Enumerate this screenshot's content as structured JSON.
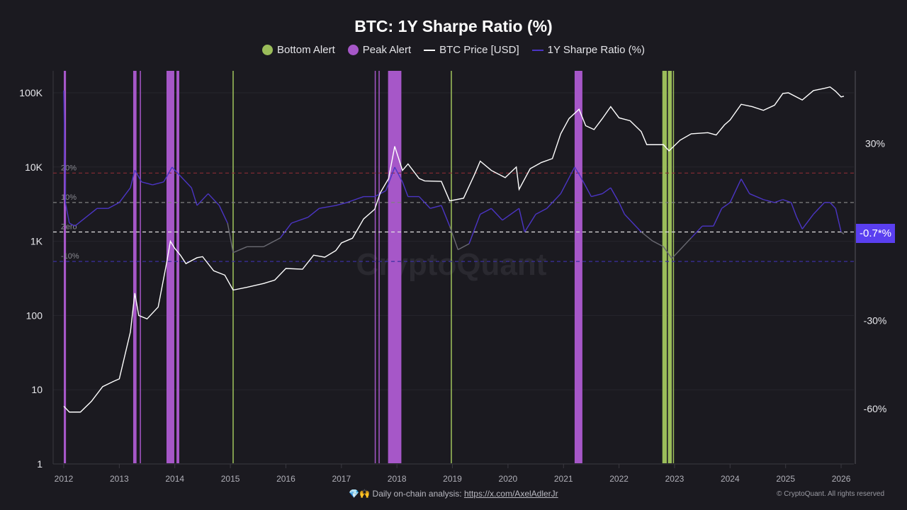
{
  "chart_data": {
    "type": "line",
    "title": "BTC: 1Y Sharpe Ratio (%)",
    "legend": [
      {
        "name": "Bottom Alert",
        "color": "#9bbd5a",
        "kind": "dot"
      },
      {
        "name": "Peak Alert",
        "color": "#a657c8",
        "kind": "dot"
      },
      {
        "name": "BTC Price [USD]",
        "color": "#ffffff",
        "kind": "line"
      },
      {
        "name": "1Y Sharpe Ratio (%)",
        "color": "#4b35c4",
        "kind": "line"
      }
    ],
    "legend_position": "top-center",
    "x_ticks": [
      "2012",
      "2013",
      "2014",
      "2015",
      "2016",
      "2017",
      "2018",
      "2019",
      "2020",
      "2021",
      "2022",
      "2023",
      "2024",
      "2025",
      "2026"
    ],
    "xlim": [
      2011.8,
      2026.22
    ],
    "left_axis": {
      "scale": "log",
      "ticks": [
        "1",
        "10",
        "100",
        "1K",
        "10K",
        "100K"
      ],
      "ylim": [
        1,
        300000
      ]
    },
    "right_axis": {
      "ticks": [
        "30%",
        "-30%",
        "-60%"
      ],
      "tick_values": [
        30,
        -30,
        -60
      ]
    },
    "thresholds": [
      {
        "label": "20%",
        "value": 20,
        "color": "#8a2c35"
      },
      {
        "label": "10%",
        "value": 10,
        "color": "#808080"
      },
      {
        "label": "Zero",
        "value": 0,
        "color": "#e0e0e0"
      },
      {
        "label": "-10%",
        "value": -10,
        "color": "#3b2fa0"
      }
    ],
    "current_value_label": "-0.7*%",
    "watermark": "CryptoQuant",
    "price": [
      [
        2012.0,
        6
      ],
      [
        2012.1,
        5
      ],
      [
        2012.3,
        5
      ],
      [
        2012.5,
        7
      ],
      [
        2012.7,
        11
      ],
      [
        2012.9,
        13
      ],
      [
        2013.0,
        14
      ],
      [
        2013.2,
        60
      ],
      [
        2013.28,
        200
      ],
      [
        2013.35,
        100
      ],
      [
        2013.5,
        90
      ],
      [
        2013.7,
        130
      ],
      [
        2013.85,
        500
      ],
      [
        2013.92,
        1000
      ],
      [
        2014.0,
        800
      ],
      [
        2014.1,
        650
      ],
      [
        2014.2,
        500
      ],
      [
        2014.4,
        600
      ],
      [
        2014.5,
        620
      ],
      [
        2014.7,
        400
      ],
      [
        2014.9,
        350
      ],
      [
        2015.05,
        220
      ],
      [
        2015.3,
        240
      ],
      [
        2015.6,
        270
      ],
      [
        2015.8,
        300
      ],
      [
        2016.0,
        430
      ],
      [
        2016.3,
        420
      ],
      [
        2016.5,
        650
      ],
      [
        2016.7,
        610
      ],
      [
        2016.9,
        750
      ],
      [
        2017.0,
        950
      ],
      [
        2017.2,
        1100
      ],
      [
        2017.4,
        2000
      ],
      [
        2017.6,
        2700
      ],
      [
        2017.7,
        4500
      ],
      [
        2017.85,
        7000
      ],
      [
        2017.96,
        19000
      ],
      [
        2018.1,
        9000
      ],
      [
        2018.2,
        11000
      ],
      [
        2018.4,
        7000
      ],
      [
        2018.5,
        6500
      ],
      [
        2018.8,
        6400
      ],
      [
        2018.95,
        3500
      ],
      [
        2019.2,
        3800
      ],
      [
        2019.4,
        8000
      ],
      [
        2019.5,
        12000
      ],
      [
        2019.7,
        9000
      ],
      [
        2019.95,
        7200
      ],
      [
        2020.15,
        10000
      ],
      [
        2020.2,
        5000
      ],
      [
        2020.4,
        9500
      ],
      [
        2020.6,
        11500
      ],
      [
        2020.8,
        13000
      ],
      [
        2020.95,
        28000
      ],
      [
        2021.1,
        45000
      ],
      [
        2021.28,
        60000
      ],
      [
        2021.4,
        36000
      ],
      [
        2021.55,
        32000
      ],
      [
        2021.7,
        45000
      ],
      [
        2021.85,
        65000
      ],
      [
        2022.0,
        46000
      ],
      [
        2022.2,
        42000
      ],
      [
        2022.4,
        30000
      ],
      [
        2022.5,
        20000
      ],
      [
        2022.8,
        20000
      ],
      [
        2022.9,
        16500
      ],
      [
        2023.1,
        23000
      ],
      [
        2023.3,
        28000
      ],
      [
        2023.6,
        29000
      ],
      [
        2023.75,
        27000
      ],
      [
        2023.9,
        37000
      ],
      [
        2024.0,
        43000
      ],
      [
        2024.2,
        70000
      ],
      [
        2024.4,
        65000
      ],
      [
        2024.6,
        58000
      ],
      [
        2024.8,
        68000
      ],
      [
        2024.95,
        98000
      ],
      [
        2025.05,
        100000
      ],
      [
        2025.3,
        80000
      ],
      [
        2025.5,
        107000
      ],
      [
        2025.7,
        115000
      ],
      [
        2025.8,
        120000
      ],
      [
        2025.9,
        105000
      ],
      [
        2026.0,
        88000
      ],
      [
        2026.05,
        90000
      ]
    ],
    "sharpe": [
      [
        2012.0,
        48
      ],
      [
        2012.03,
        10
      ],
      [
        2012.1,
        3
      ],
      [
        2012.2,
        2
      ],
      [
        2012.4,
        5
      ],
      [
        2012.6,
        8
      ],
      [
        2012.8,
        8
      ],
      [
        2013.0,
        10
      ],
      [
        2013.2,
        15
      ],
      [
        2013.28,
        21
      ],
      [
        2013.4,
        17
      ],
      [
        2013.6,
        16
      ],
      [
        2013.8,
        17
      ],
      [
        2013.95,
        22
      ],
      [
        2014.1,
        19
      ],
      [
        2014.3,
        15
      ],
      [
        2014.4,
        9
      ],
      [
        2014.6,
        13
      ],
      [
        2014.8,
        9
      ],
      [
        2014.95,
        3
      ],
      [
        2015.05,
        -7
      ],
      [
        2015.3,
        -5
      ],
      [
        2015.6,
        -5
      ],
      [
        2015.9,
        -2
      ],
      [
        2016.1,
        3
      ],
      [
        2016.4,
        5
      ],
      [
        2016.6,
        8
      ],
      [
        2016.9,
        9
      ],
      [
        2017.1,
        10
      ],
      [
        2017.4,
        12
      ],
      [
        2017.6,
        12
      ],
      [
        2017.8,
        14
      ],
      [
        2017.96,
        22
      ],
      [
        2018.1,
        17
      ],
      [
        2018.2,
        12
      ],
      [
        2018.4,
        12
      ],
      [
        2018.6,
        8
      ],
      [
        2018.8,
        9
      ],
      [
        2018.95,
        2
      ],
      [
        2019.1,
        -6
      ],
      [
        2019.3,
        -4
      ],
      [
        2019.5,
        6
      ],
      [
        2019.7,
        8
      ],
      [
        2019.9,
        4
      ],
      [
        2020.2,
        8
      ],
      [
        2020.3,
        0
      ],
      [
        2020.5,
        6
      ],
      [
        2020.7,
        8
      ],
      [
        2020.95,
        13
      ],
      [
        2021.2,
        22
      ],
      [
        2021.3,
        19
      ],
      [
        2021.5,
        12
      ],
      [
        2021.7,
        13
      ],
      [
        2021.85,
        15
      ],
      [
        2022.0,
        10
      ],
      [
        2022.1,
        6
      ],
      [
        2022.2,
        4
      ],
      [
        2022.4,
        0
      ],
      [
        2022.6,
        -3
      ],
      [
        2022.8,
        -5
      ],
      [
        2022.95,
        -9
      ],
      [
        2023.1,
        -6
      ],
      [
        2023.3,
        -2
      ],
      [
        2023.5,
        2
      ],
      [
        2023.7,
        2
      ],
      [
        2023.85,
        8
      ],
      [
        2024.0,
        10
      ],
      [
        2024.2,
        18
      ],
      [
        2024.35,
        13
      ],
      [
        2024.6,
        11
      ],
      [
        2024.8,
        10
      ],
      [
        2024.95,
        11
      ],
      [
        2025.1,
        10
      ],
      [
        2025.2,
        5
      ],
      [
        2025.3,
        1
      ],
      [
        2025.5,
        6
      ],
      [
        2025.7,
        10
      ],
      [
        2025.8,
        10
      ],
      [
        2025.9,
        8
      ],
      [
        2026.0,
        0
      ],
      [
        2026.05,
        -0.7
      ]
    ],
    "peak_alerts": [
      [
        2012.0,
        2012.04
      ],
      [
        2013.25,
        2013.31
      ],
      [
        2013.37,
        2013.38
      ],
      [
        2013.85,
        2013.99
      ],
      [
        2014.03,
        2014.08
      ],
      [
        2017.6,
        2017.61
      ],
      [
        2017.67,
        2017.68
      ],
      [
        2017.84,
        2018.08
      ],
      [
        2021.2,
        2021.34
      ]
    ],
    "bottom_alerts": [
      [
        2015.04,
        2015.06
      ],
      [
        2018.97,
        2018.99
      ],
      [
        2022.78,
        2022.86
      ],
      [
        2022.88,
        2022.95
      ],
      [
        2022.97,
        2022.99
      ]
    ]
  },
  "footer": {
    "emoji": "💎🙌",
    "text": "Daily on-chain analysis:",
    "link": "https://x.com/AxelAdlerJr",
    "copyright": "© CryptoQuant. All rights reserved"
  }
}
